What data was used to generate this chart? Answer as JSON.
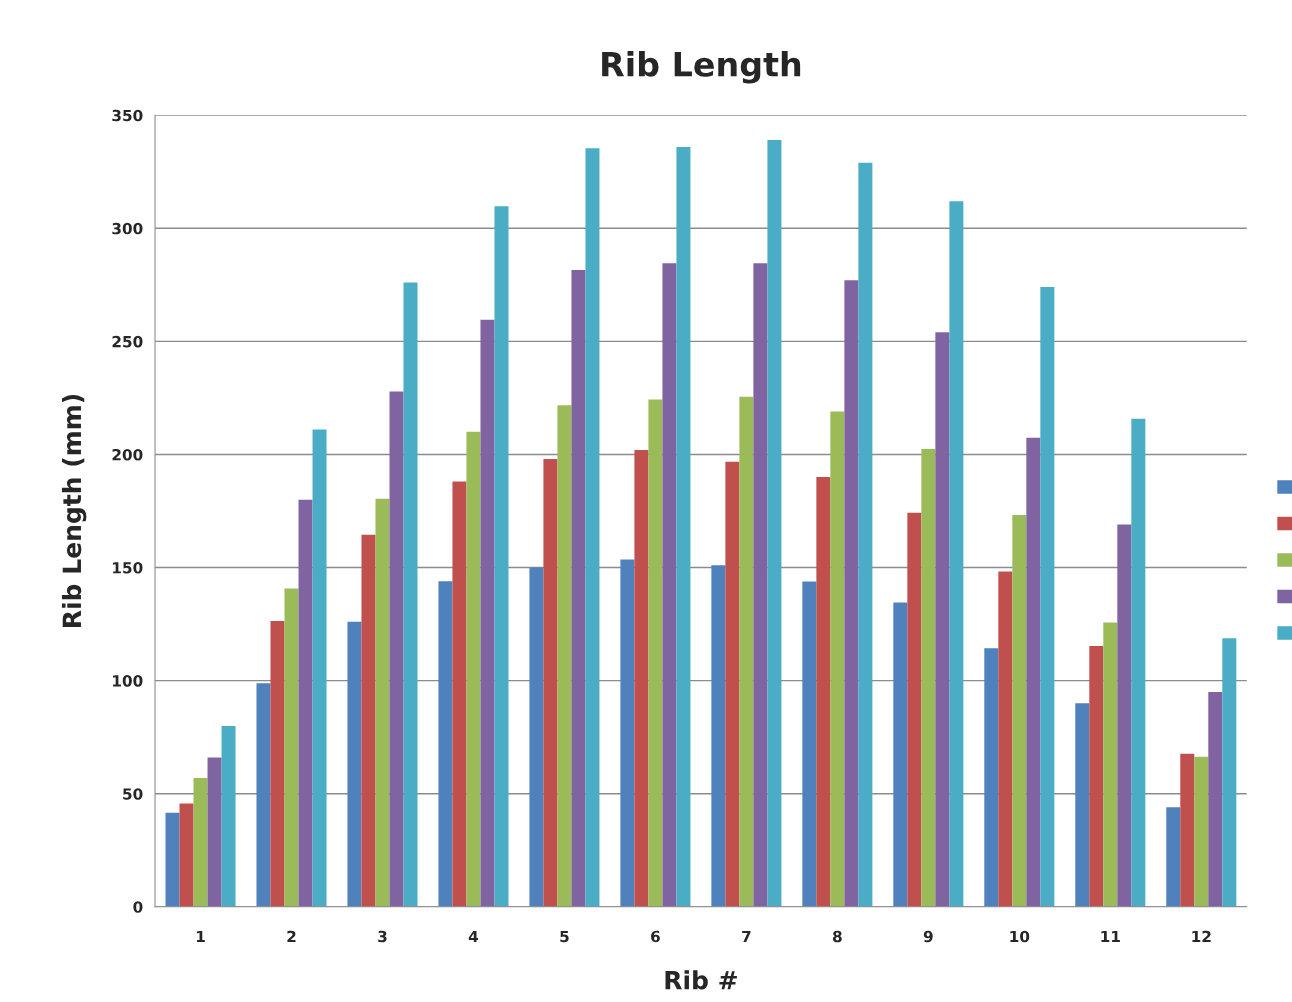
{
  "chart_data": {
    "type": "bar",
    "title": "Rib Length",
    "xlabel": "Rib #",
    "ylabel": "Rib Length (mm)",
    "categories": [
      "1",
      "2",
      "3",
      "4",
      "5",
      "6",
      "7",
      "8",
      "9",
      "10",
      "11",
      "12"
    ],
    "series": [
      {
        "color": "#4f81bd",
        "values": [
          41.6,
          98.9,
          126,
          144,
          150,
          153.6,
          151,
          143.8,
          134.5,
          114.3,
          90,
          44
        ]
      },
      {
        "color": "#c0504d",
        "values": [
          45.7,
          126.4,
          164.5,
          188,
          198,
          202,
          196.8,
          190,
          174.2,
          148.3,
          115.3,
          67.7
        ]
      },
      {
        "color": "#9bbb59",
        "values": [
          57,
          140.7,
          180.4,
          210,
          221.8,
          224.3,
          225.5,
          219,
          202.4,
          173.2,
          125.7,
          66.3
        ]
      },
      {
        "color": "#8064a2",
        "values": [
          66,
          180,
          227.8,
          259.6,
          281.6,
          284.6,
          284.6,
          277,
          254,
          207.4,
          169,
          95
        ]
      },
      {
        "color": "#4bacc6",
        "values": [
          80,
          211,
          276,
          309.8,
          335.4,
          336,
          339,
          329,
          312,
          274,
          215.8,
          118.7
        ]
      }
    ],
    "ylim": [
      0,
      350
    ],
    "yticks": [
      0,
      50,
      100,
      150,
      200,
      250,
      300,
      350
    ],
    "grid": "y"
  }
}
